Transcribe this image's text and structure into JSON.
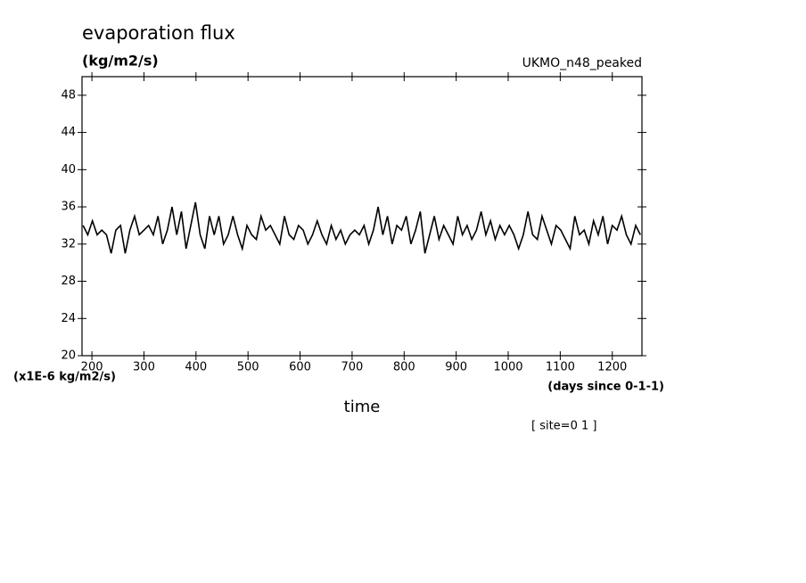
{
  "chart_data": {
    "type": "line",
    "title": "evaporation flux",
    "units_label": "(kg/m2/s)",
    "dataset_label": "UKMO_n48_peaked",
    "y_axis_label": "(x1E-6 kg/m2/s)",
    "x_units_label": "(days since 0-1-1)",
    "x_axis_label": "time",
    "footnote": "[ site=0 1 ]",
    "color": "#000000",
    "xlim": [
      181,
      1257
    ],
    "ylim": [
      20,
      50
    ],
    "xticks": [
      200,
      300,
      400,
      500,
      600,
      700,
      800,
      900,
      1000,
      1100,
      1200
    ],
    "yticks": [
      20,
      24,
      28,
      32,
      36,
      40,
      44,
      48
    ],
    "x": [
      183,
      192,
      201,
      210,
      219,
      228,
      237,
      246,
      255,
      264,
      273,
      282,
      291,
      300,
      309,
      318,
      327,
      336,
      345,
      354,
      363,
      372,
      381,
      390,
      399,
      408,
      417,
      426,
      435,
      444,
      453,
      462,
      471,
      480,
      489,
      498,
      507,
      516,
      525,
      534,
      543,
      552,
      561,
      570,
      579,
      588,
      597,
      606,
      615,
      624,
      633,
      642,
      651,
      660,
      669,
      678,
      687,
      696,
      705,
      714,
      723,
      732,
      741,
      750,
      759,
      768,
      777,
      786,
      795,
      804,
      813,
      822,
      831,
      840,
      849,
      858,
      867,
      876,
      885,
      894,
      903,
      912,
      921,
      930,
      939,
      948,
      957,
      966,
      975,
      984,
      993,
      1002,
      1011,
      1020,
      1029,
      1038,
      1047,
      1056,
      1065,
      1074,
      1083,
      1092,
      1101,
      1110,
      1119,
      1128,
      1137,
      1146,
      1155,
      1164,
      1173,
      1182,
      1191,
      1200,
      1209,
      1218,
      1227,
      1236,
      1245,
      1254
    ],
    "values": [
      34,
      33,
      34.5,
      33,
      33.5,
      33,
      31,
      33.5,
      34,
      31,
      33.5,
      35,
      33,
      33.5,
      34,
      33,
      35,
      32,
      33.5,
      36,
      33,
      35.5,
      31.5,
      34,
      36.5,
      33,
      31.5,
      35,
      33,
      35,
      32,
      33,
      35,
      33,
      31.5,
      34,
      33,
      32.5,
      35,
      33.5,
      34,
      33,
      32,
      35,
      33,
      32.5,
      34,
      33.5,
      32,
      33,
      34.5,
      33,
      32,
      34,
      32.5,
      33.5,
      32,
      33,
      33.5,
      33,
      34,
      32,
      33.5,
      36,
      33,
      35,
      32,
      34,
      33.5,
      35,
      32,
      33.5,
      35.5,
      31,
      33,
      35,
      32.5,
      34,
      33,
      32,
      35,
      33,
      34,
      32.5,
      33.5,
      35.5,
      33,
      34.5,
      32.5,
      34,
      33,
      34,
      33,
      31.5,
      33,
      35.5,
      33,
      32.5,
      35,
      33.5,
      32,
      34,
      33.5,
      32.5,
      31.5,
      35,
      33,
      33.5,
      32,
      34.5,
      33,
      35,
      32,
      34,
      33.5,
      35,
      33,
      32,
      34,
      33
    ]
  }
}
